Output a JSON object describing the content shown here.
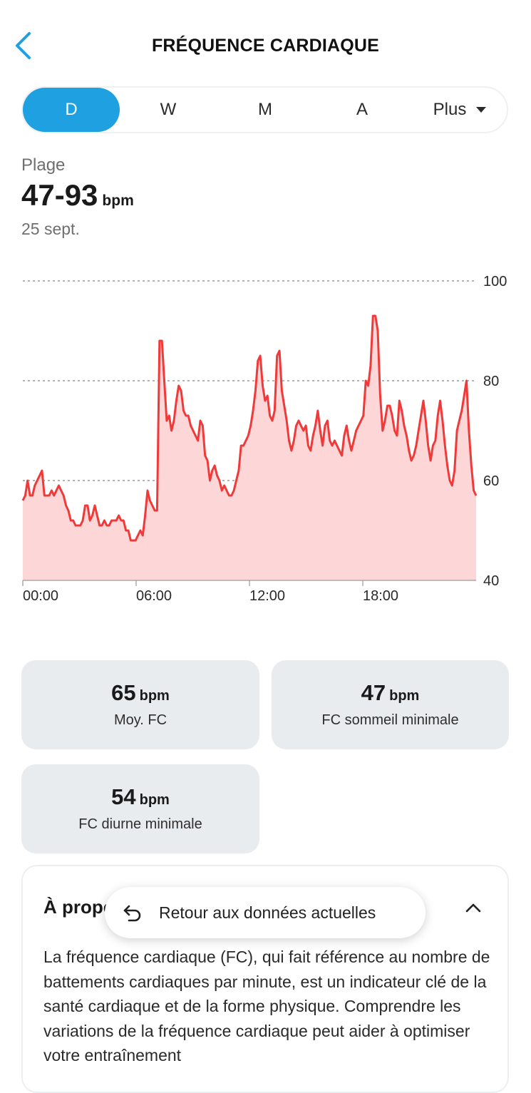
{
  "header": {
    "title": "FRÉQUENCE CARDIAQUE"
  },
  "tabs": {
    "items": [
      "D",
      "W",
      "M",
      "A"
    ],
    "more_label": "Plus",
    "active": "D"
  },
  "summary": {
    "label": "Plage",
    "value": "47-93",
    "unit": "bpm",
    "date": "25 sept."
  },
  "colors": {
    "accent": "#1ea0e1",
    "line": "#f03a3a",
    "fill": "#fdd7d7"
  },
  "chart_data": {
    "type": "area",
    "ylim": [
      40,
      100
    ],
    "y_ticks": [
      "100",
      "80",
      "60",
      "40"
    ],
    "x_ticks": [
      "00:00",
      "06:00",
      "12:00",
      "18:00"
    ],
    "x_range_hours": [
      0,
      24
    ],
    "series": [
      {
        "values": [
          56,
          57,
          60,
          57,
          57,
          59,
          60,
          61,
          62,
          57,
          57,
          57,
          58,
          57,
          58,
          59,
          58,
          57,
          55,
          54,
          52,
          52,
          51,
          51,
          51,
          52,
          55,
          55,
          52,
          53,
          55,
          53,
          51,
          51,
          52,
          51,
          51,
          52,
          52,
          52,
          53,
          52,
          52,
          50,
          50,
          48,
          48,
          48,
          49,
          50,
          49,
          53,
          58,
          56,
          55,
          54,
          54,
          88,
          88,
          80,
          72,
          73,
          70,
          72,
          76,
          79,
          78,
          74,
          73,
          73,
          71,
          70,
          69,
          68,
          72,
          71,
          65,
          64,
          60,
          62,
          63,
          61,
          60,
          58,
          59,
          58,
          57,
          57,
          58,
          60,
          62,
          67,
          67,
          68,
          69,
          71,
          74,
          78,
          84,
          85,
          79,
          76,
          77,
          73,
          72,
          74,
          85,
          86,
          78,
          75,
          72,
          68,
          66,
          68,
          71,
          72,
          71,
          70,
          71,
          67,
          66,
          69,
          71,
          74,
          70,
          67,
          71,
          72,
          68,
          67,
          68,
          67,
          66,
          65,
          69,
          71,
          68,
          66,
          68,
          70,
          71,
          72,
          73,
          80,
          79,
          83,
          93,
          93,
          90,
          77,
          70,
          72,
          75,
          75,
          73,
          70,
          69,
          76,
          74,
          71,
          69,
          66,
          64,
          65,
          67,
          70,
          73,
          76,
          72,
          67,
          64,
          67,
          68,
          73,
          76,
          72,
          67,
          63,
          60,
          59,
          62,
          70,
          72,
          74,
          77,
          80,
          70,
          63,
          58,
          57
        ]
      }
    ]
  },
  "stats": [
    {
      "value": "65",
      "unit": "bpm",
      "label": "Moy. FC"
    },
    {
      "value": "47",
      "unit": "bpm",
      "label": "FC sommeil minimale"
    },
    {
      "value": "54",
      "unit": "bpm",
      "label": "FC diurne minimale"
    }
  ],
  "about": {
    "title": "À propos de la fréquence cardiaque",
    "text": "La fréquence cardiaque (FC), qui fait référence au nombre de battements cardiaques par minute, est un indicateur clé de la santé cardiaque et de la forme physique. Comprendre les variations de la fréquence cardiaque peut aider à optimiser votre entraînement"
  },
  "return_pill": {
    "label": "Retour aux données actuelles"
  },
  "icons": {
    "back": "chevron-left-icon",
    "dropdown": "caret-down-icon",
    "collapse": "chevron-up-icon",
    "undo": "undo-arrow-icon"
  }
}
